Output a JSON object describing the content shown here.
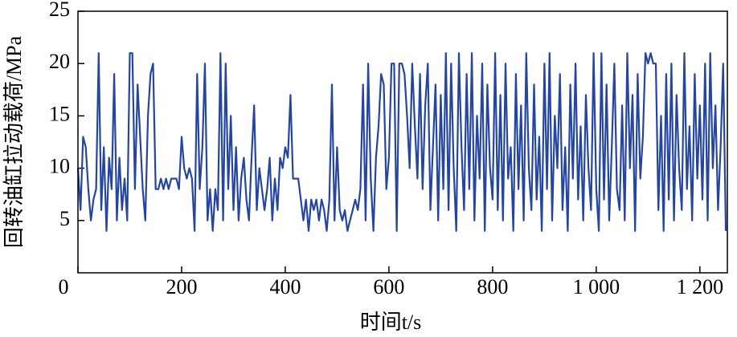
{
  "chart_data": {
    "type": "line",
    "xlabel": "时间t/s",
    "ylabel": "回转油缸拉动载荷/MPa",
    "xlim": [
      0,
      1253
    ],
    "ylim": [
      0,
      25
    ],
    "xticks": [
      0,
      200,
      400,
      600,
      800,
      {
        "value": 1000,
        "label": "1 000"
      },
      {
        "value": 1200,
        "label": "1 200"
      }
    ],
    "yticks": [
      5,
      10,
      15,
      20,
      25
    ],
    "series": [
      {
        "color": "#2446a0",
        "x": [
          0,
          5,
          10,
          15,
          20,
          25,
          30,
          35,
          40,
          45,
          50,
          55,
          60,
          65,
          70,
          75,
          80,
          85,
          90,
          95,
          100,
          105,
          110,
          115,
          120,
          125,
          130,
          135,
          140,
          145,
          150,
          155,
          160,
          165,
          170,
          175,
          180,
          185,
          190,
          195,
          200,
          205,
          210,
          215,
          220,
          225,
          230,
          235,
          240,
          245,
          250,
          255,
          260,
          265,
          270,
          275,
          280,
          285,
          290,
          295,
          300,
          305,
          310,
          315,
          320,
          325,
          330,
          335,
          340,
          345,
          350,
          355,
          360,
          365,
          370,
          375,
          380,
          385,
          390,
          395,
          400,
          405,
          410,
          415,
          420,
          425,
          430,
          435,
          440,
          445,
          450,
          455,
          460,
          465,
          470,
          475,
          480,
          485,
          490,
          495,
          500,
          505,
          510,
          515,
          520,
          525,
          530,
          535,
          540,
          545,
          550,
          555,
          560,
          565,
          570,
          575,
          580,
          585,
          590,
          595,
          600,
          605,
          610,
          615,
          620,
          625,
          630,
          635,
          640,
          645,
          650,
          655,
          660,
          665,
          670,
          675,
          680,
          685,
          690,
          695,
          700,
          705,
          710,
          715,
          720,
          725,
          730,
          735,
          740,
          745,
          750,
          755,
          760,
          765,
          770,
          775,
          780,
          785,
          790,
          795,
          800,
          805,
          810,
          815,
          820,
          825,
          830,
          835,
          840,
          845,
          850,
          855,
          860,
          865,
          870,
          875,
          880,
          885,
          890,
          895,
          900,
          905,
          910,
          915,
          920,
          925,
          930,
          935,
          940,
          945,
          950,
          955,
          960,
          965,
          970,
          975,
          980,
          985,
          990,
          995,
          1000,
          1005,
          1010,
          1015,
          1020,
          1025,
          1030,
          1035,
          1040,
          1045,
          1050,
          1055,
          1060,
          1065,
          1070,
          1075,
          1080,
          1085,
          1090,
          1095,
          1100,
          1105,
          1110,
          1115,
          1120,
          1125,
          1130,
          1135,
          1140,
          1145,
          1150,
          1155,
          1160,
          1165,
          1170,
          1175,
          1180,
          1185,
          1190,
          1195,
          1200,
          1205,
          1210,
          1215,
          1220,
          1225,
          1230,
          1235,
          1240,
          1245,
          1250
        ],
        "values": [
          10,
          6,
          13,
          12,
          8,
          5,
          7,
          8,
          21,
          6,
          12,
          4,
          11,
          8,
          19,
          5,
          11,
          6,
          9,
          5,
          21,
          21,
          8,
          18,
          13,
          8,
          5,
          15,
          19,
          20,
          8,
          8,
          9,
          8,
          9,
          8,
          9,
          9,
          9,
          8,
          13,
          10,
          9,
          10,
          9,
          4,
          19,
          8,
          12,
          20,
          5,
          8,
          4,
          8,
          6,
          21,
          5,
          20,
          8,
          15,
          6,
          12,
          5,
          9,
          11,
          7,
          5,
          11,
          16,
          6,
          10,
          8,
          6,
          8,
          11,
          5,
          9,
          6,
          11,
          10,
          12,
          11,
          17,
          9,
          9,
          9,
          7,
          5,
          7,
          4,
          7,
          6,
          7,
          5,
          7,
          6,
          4,
          7,
          18,
          5,
          12,
          6,
          5,
          6,
          4,
          5,
          6,
          7,
          6,
          8,
          18,
          5,
          20,
          9,
          4,
          11,
          14,
          19,
          18,
          8,
          11,
          20,
          20,
          4,
          20,
          20,
          19,
          15,
          10,
          20,
          14,
          9,
          19,
          8,
          16,
          20,
          6,
          12,
          18,
          5,
          17,
          8,
          21,
          6,
          20,
          10,
          4,
          21,
          12,
          6,
          19,
          8,
          21,
          5,
          15,
          9,
          20,
          4,
          18,
          10,
          7,
          21,
          6,
          17,
          5,
          20,
          9,
          12,
          4,
          19,
          8,
          16,
          5,
          21,
          10,
          6,
          18,
          7,
          13,
          4,
          20,
          8,
          21,
          5,
          15,
          10,
          19,
          6,
          12,
          4,
          18,
          9,
          20,
          7,
          14,
          5,
          17,
          10,
          6,
          21,
          8,
          4,
          21,
          7,
          18,
          5,
          12,
          20,
          8,
          6,
          16,
          5,
          21,
          10,
          17,
          4,
          19,
          9,
          13,
          21,
          20,
          21,
          20,
          20,
          6,
          15,
          4,
          19,
          7,
          20,
          5,
          17,
          10,
          6,
          21,
          8,
          14,
          5,
          19,
          9,
          16,
          7,
          20,
          5,
          21,
          10,
          16,
          6,
          12,
          20,
          4
        ]
      }
    ]
  }
}
